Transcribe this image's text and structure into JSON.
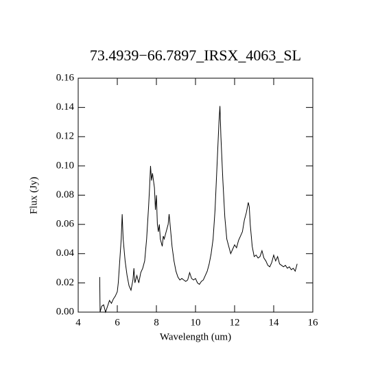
{
  "chart_data": {
    "type": "line",
    "title": "73.4939−66.7897_IRSX_4063_SL",
    "xlabel": "Wavelength (um)",
    "ylabel": "Flux (Jy)",
    "xlim": [
      4,
      16
    ],
    "xticks": [
      4,
      6,
      8,
      10,
      12,
      14,
      16
    ],
    "ylim": [
      0,
      0.16
    ],
    "yticks": [
      {
        "value": 0,
        "label": "0.00"
      },
      0.02,
      0.04,
      0.06,
      0.08,
      {
        "value": 0.1,
        "label": "0.10"
      },
      0.12,
      0.14,
      0.16
    ],
    "color": "#000000",
    "x": [
      5.1,
      5.12,
      5.2,
      5.3,
      5.4,
      5.5,
      5.6,
      5.7,
      5.8,
      5.9,
      6.0,
      6.05,
      6.1,
      6.2,
      6.25,
      6.3,
      6.4,
      6.5,
      6.6,
      6.7,
      6.8,
      6.85,
      6.9,
      7.0,
      7.1,
      7.2,
      7.3,
      7.4,
      7.5,
      7.6,
      7.65,
      7.7,
      7.75,
      7.8,
      7.9,
      7.95,
      8.0,
      8.05,
      8.1,
      8.15,
      8.2,
      8.3,
      8.35,
      8.4,
      8.5,
      8.6,
      8.65,
      8.7,
      8.8,
      8.9,
      9.0,
      9.1,
      9.2,
      9.3,
      9.4,
      9.5,
      9.6,
      9.7,
      9.8,
      9.9,
      10.0,
      10.1,
      10.2,
      10.3,
      10.4,
      10.5,
      10.6,
      10.7,
      10.8,
      10.9,
      11.0,
      11.1,
      11.2,
      11.25,
      11.3,
      11.4,
      11.5,
      11.6,
      11.7,
      11.8,
      11.9,
      12.0,
      12.1,
      12.2,
      12.3,
      12.4,
      12.5,
      12.6,
      12.7,
      12.75,
      12.8,
      12.9,
      13.0,
      13.1,
      13.2,
      13.3,
      13.4,
      13.5,
      13.6,
      13.7,
      13.8,
      13.9,
      14.0,
      14.1,
      14.2,
      14.3,
      14.4,
      14.5,
      14.6,
      14.7,
      14.8,
      14.9,
      15.0,
      15.1,
      15.2
    ],
    "values": [
      0.024,
      0.0,
      0.004,
      0.005,
      0.0,
      0.004,
      0.008,
      0.006,
      0.009,
      0.011,
      0.014,
      0.02,
      0.03,
      0.05,
      0.067,
      0.05,
      0.035,
      0.025,
      0.018,
      0.015,
      0.022,
      0.03,
      0.02,
      0.025,
      0.02,
      0.027,
      0.03,
      0.035,
      0.05,
      0.072,
      0.085,
      0.1,
      0.09,
      0.095,
      0.085,
      0.07,
      0.08,
      0.06,
      0.055,
      0.06,
      0.05,
      0.045,
      0.052,
      0.05,
      0.055,
      0.06,
      0.067,
      0.06,
      0.045,
      0.035,
      0.028,
      0.024,
      0.022,
      0.023,
      0.022,
      0.021,
      0.022,
      0.027,
      0.023,
      0.022,
      0.023,
      0.02,
      0.019,
      0.021,
      0.022,
      0.025,
      0.028,
      0.033,
      0.04,
      0.05,
      0.07,
      0.1,
      0.13,
      0.141,
      0.12,
      0.09,
      0.065,
      0.05,
      0.045,
      0.04,
      0.043,
      0.046,
      0.044,
      0.049,
      0.052,
      0.055,
      0.063,
      0.068,
      0.075,
      0.072,
      0.06,
      0.045,
      0.038,
      0.039,
      0.037,
      0.038,
      0.042,
      0.037,
      0.035,
      0.032,
      0.031,
      0.034,
      0.039,
      0.035,
      0.038,
      0.033,
      0.032,
      0.031,
      0.032,
      0.03,
      0.031,
      0.029,
      0.03,
      0.028,
      0.033
    ]
  }
}
